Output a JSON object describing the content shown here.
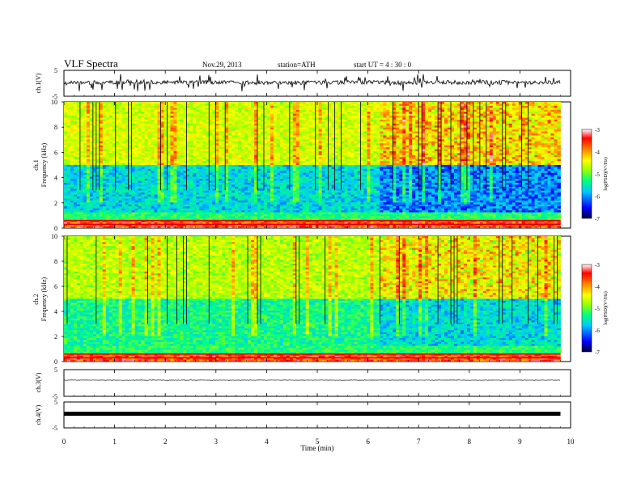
{
  "header": {
    "title": "VLF  Spectra",
    "date": "Nov.29, 2013",
    "station": "station=ATH",
    "start": "start  UT  =  4 : 30 : 0"
  },
  "chart_data": [
    {
      "type": "line",
      "panel": "ch1-waveform",
      "ylabel": "ch.1(V)",
      "ylim": [
        -5,
        5
      ],
      "yticks": [
        "5",
        "-5"
      ],
      "description": "VLF waveform trace, noisy around 0 V with spikes"
    },
    {
      "type": "heatmap",
      "panel": "ch1-spectrogram",
      "channel_label": "ch.1",
      "ylabel": "Frequency  (kHz)",
      "ylim": [
        0,
        10
      ],
      "yticks": [
        "0",
        "2",
        "4",
        "6",
        "8",
        "10"
      ],
      "xlim": [
        0,
        10
      ],
      "colorbar": {
        "label": "log(PSD)(V²/Hz)",
        "range": [
          -7,
          -3
        ],
        "ticks": [
          "-3",
          "-4",
          "-5",
          "-6",
          "-7"
        ]
      },
      "features": {
        "strong_bands_khz": [
          0.3,
          0.6
        ],
        "quiet_band_khz": [
          1.5,
          4
        ],
        "enhanced_high_freq_after_min": 6.2
      }
    },
    {
      "type": "heatmap",
      "panel": "ch2-spectrogram",
      "channel_label": "ch.2",
      "ylabel": "Frequency  (kHz)",
      "ylim": [
        0,
        10
      ],
      "yticks": [
        "0",
        "2",
        "4",
        "6",
        "8",
        "10"
      ],
      "xlim": [
        0,
        10
      ],
      "colorbar": {
        "label": "log(PSD)(V²/Hz)",
        "range": [
          -7,
          -3
        ],
        "ticks": [
          "-3",
          "-4",
          "-5",
          "-6",
          "-7"
        ]
      }
    },
    {
      "type": "line",
      "panel": "ch3-waveform",
      "ylabel": "ch.3(V)",
      "ylim": [
        -5,
        5
      ],
      "yticks": [
        "5",
        "-5"
      ]
    },
    {
      "type": "line",
      "panel": "ch4-waveform",
      "ylabel": "ch.4(V)",
      "ylim": [
        -5,
        5
      ],
      "yticks": [
        "5",
        "-5"
      ]
    }
  ],
  "xaxis": {
    "label": "Time  (min)",
    "ticks": [
      "0",
      "1",
      "2",
      "3",
      "4",
      "5",
      "6",
      "7",
      "8",
      "9",
      "10"
    ],
    "data_end_min": 9.8
  },
  "colors": {
    "scale": [
      "#000080",
      "#0000ff",
      "#00a0ff",
      "#00e0ff",
      "#00ff80",
      "#80ff00",
      "#ffff00",
      "#ffa000",
      "#ff2000",
      "#e00000",
      "#ffffff"
    ]
  }
}
